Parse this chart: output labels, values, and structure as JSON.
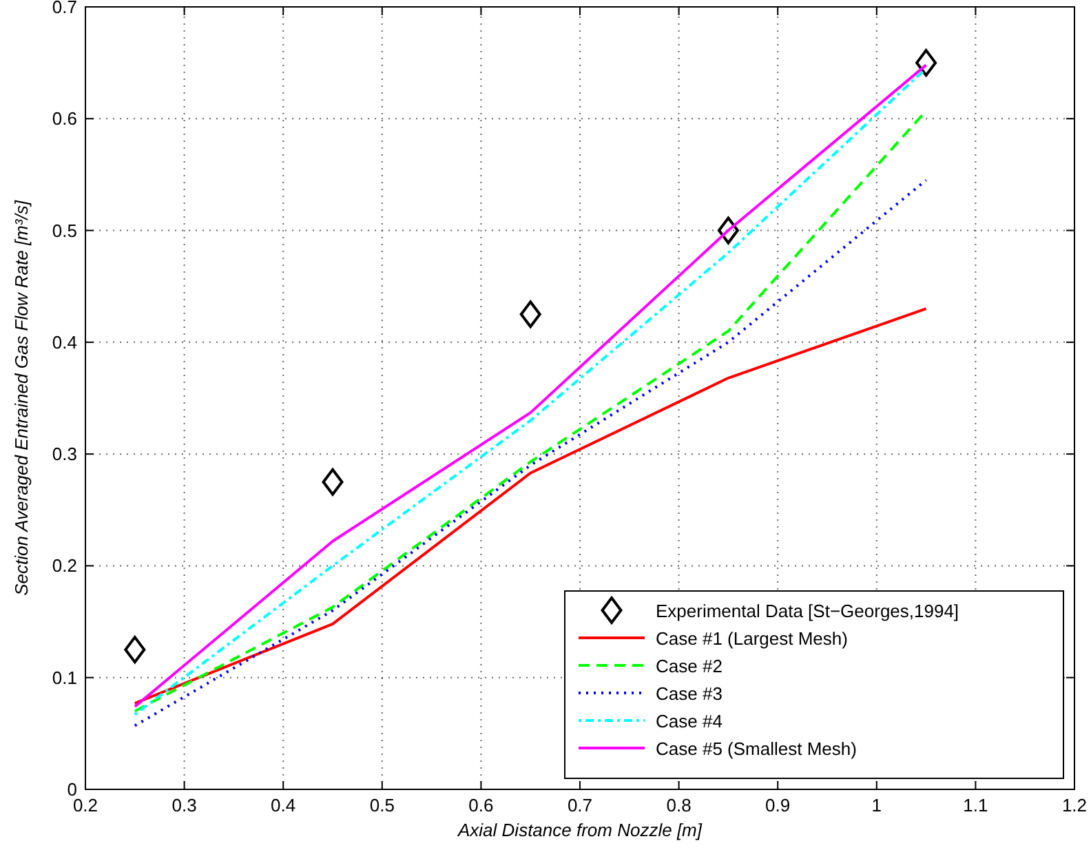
{
  "chart_data": {
    "type": "line",
    "xlabel": "Axial Distance from Nozzle [m]",
    "ylabel": "Section Averaged Entrained Gas Flow Rate [m³/s]",
    "x": [
      0.25,
      0.45,
      0.65,
      0.85,
      1.05
    ],
    "series": [
      {
        "name": "Experimental Data [St−Georges,1994]",
        "type": "scatter",
        "color": "#000000",
        "marker": "diamond",
        "values": [
          0.125,
          0.275,
          0.425,
          0.5,
          0.65
        ]
      },
      {
        "name": "Case #1 (Largest Mesh)",
        "color": "#ff0000",
        "line_style": "solid",
        "values": [
          0.077,
          0.148,
          0.283,
          0.368,
          0.43
        ]
      },
      {
        "name": "Case #2",
        "color": "#00ff00",
        "line_style": "dashed",
        "values": [
          0.07,
          0.163,
          0.293,
          0.41,
          0.607
        ]
      },
      {
        "name": "Case #3",
        "color": "#0000ff",
        "line_style": "dotted",
        "values": [
          0.057,
          0.16,
          0.29,
          0.4,
          0.545
        ]
      },
      {
        "name": "Case #4",
        "color": "#00ffff",
        "line_style": "dashdot",
        "values": [
          0.067,
          0.2,
          0.33,
          0.48,
          0.645
        ]
      },
      {
        "name": "Case #5 (Smallest Mesh)",
        "color": "#ff00ff",
        "line_style": "solid",
        "values": [
          0.074,
          0.222,
          0.337,
          0.5,
          0.648
        ]
      }
    ],
    "xlim": [
      0.2,
      1.2
    ],
    "xticks": [
      0.2,
      0.3,
      0.4,
      0.5,
      0.6,
      0.7,
      0.8,
      0.9,
      1,
      1.1,
      1.2
    ],
    "ylim": [
      0,
      0.7
    ],
    "yticks": [
      0,
      0.1,
      0.2,
      0.3,
      0.4,
      0.5,
      0.6,
      0.7
    ],
    "grid": true,
    "legend": "bottom right",
    "marker": "none"
  }
}
